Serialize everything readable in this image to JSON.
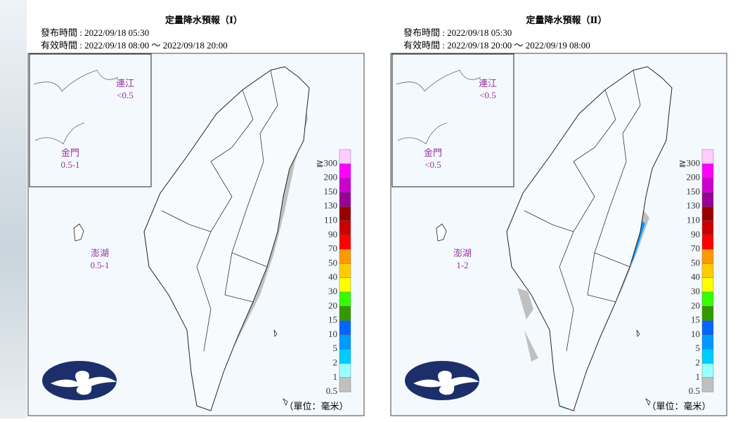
{
  "panels": [
    {
      "title": "定量降水預報（Ⅰ）",
      "issued": "發布時間 : 2022/09/18 05:30",
      "valid": "有效時間 : 2022/09/18 08:00 ～ 2022/09/18 20:00",
      "regions": [
        {
          "name": "連江",
          "amount": "<0.5"
        },
        {
          "name": "金門",
          "amount": "0.5-1"
        },
        {
          "name": "澎湖",
          "amount": "0.5-1"
        }
      ],
      "unit": "（單位：毫米）"
    },
    {
      "title": "定量降水預報（Ⅱ）",
      "issued": "發布時間 : 2022/09/18 05:30",
      "valid": "有效時間 : 2022/09/18 20:00 ～ 2022/09/19 08:00",
      "regions": [
        {
          "name": "連江",
          "amount": "<0.5"
        },
        {
          "name": "金門",
          "amount": "<0.5"
        },
        {
          "name": "澎湖",
          "amount": "1-2"
        }
      ],
      "unit": "（單位：毫米）"
    }
  ],
  "legend": {
    "labels": [
      "≧300",
      "200",
      "150",
      "130",
      "110",
      "90",
      "70",
      "50",
      "40",
      "30",
      "20",
      "15",
      "10",
      "5",
      "2",
      "1",
      "0.5"
    ],
    "colors": [
      "#ffccff",
      "#ff00ff",
      "#cc00cc",
      "#990099",
      "#990000",
      "#cc0000",
      "#ff0000",
      "#ff9900",
      "#ffcc00",
      "#ffff00",
      "#33ff00",
      "#339900",
      "#0066ff",
      "#0099ff",
      "#00ccff",
      "#99ffff",
      "#c0c0c0"
    ]
  }
}
